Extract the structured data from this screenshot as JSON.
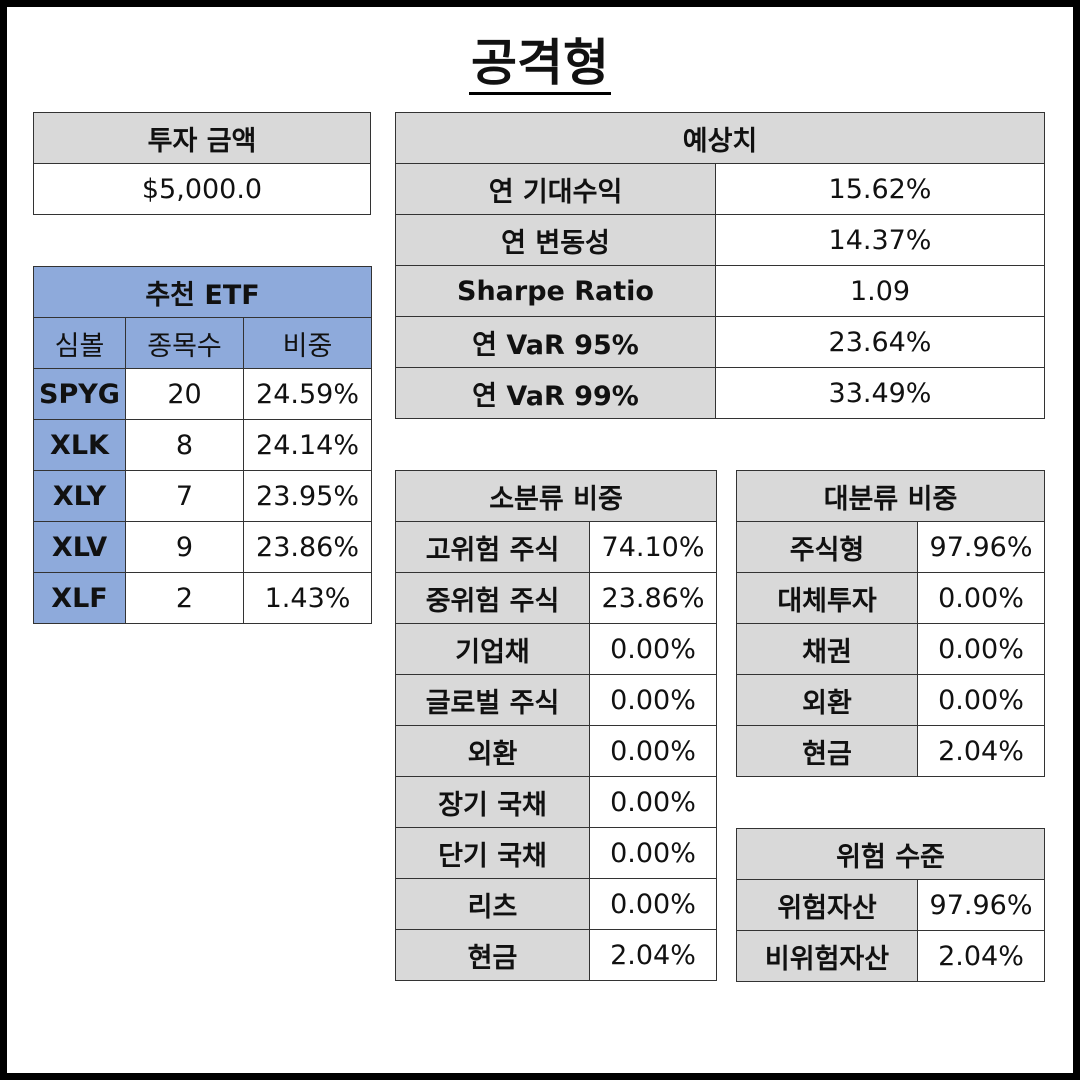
{
  "title": "공격형",
  "investment": {
    "header": "투자 금액",
    "amount": "$5,000.0"
  },
  "etf": {
    "header": "추천 ETF",
    "columns": [
      "심볼",
      "종목수",
      "비중"
    ],
    "rows": [
      {
        "symbol": "SPYG",
        "count": "20",
        "weight": "24.59%"
      },
      {
        "symbol": "XLK",
        "count": "8",
        "weight": "24.14%"
      },
      {
        "symbol": "XLY",
        "count": "7",
        "weight": "23.95%"
      },
      {
        "symbol": "XLV",
        "count": "9",
        "weight": "23.86%"
      },
      {
        "symbol": "XLF",
        "count": "2",
        "weight": "1.43%"
      }
    ]
  },
  "forecast": {
    "header": "예상치",
    "rows": [
      {
        "label": "연 기대수익",
        "value": "15.62%"
      },
      {
        "label": "연 변동성",
        "value": "14.37%"
      },
      {
        "label": "Sharpe Ratio",
        "value": "1.09"
      },
      {
        "label": "연 VaR 95%",
        "value": "23.64%"
      },
      {
        "label": "연 VaR 99%",
        "value": "33.49%"
      }
    ]
  },
  "sub_category": {
    "header": "소분류 비중",
    "rows": [
      {
        "label": "고위험 주식",
        "value": "74.10%"
      },
      {
        "label": "중위험 주식",
        "value": "23.86%"
      },
      {
        "label": "기업채",
        "value": "0.00%"
      },
      {
        "label": "글로벌 주식",
        "value": "0.00%"
      },
      {
        "label": "외환",
        "value": "0.00%"
      },
      {
        "label": "장기 국채",
        "value": "0.00%"
      },
      {
        "label": "단기 국채",
        "value": "0.00%"
      },
      {
        "label": "리츠",
        "value": "0.00%"
      },
      {
        "label": "현금",
        "value": "2.04%"
      }
    ]
  },
  "main_category": {
    "header": "대분류 비중",
    "rows": [
      {
        "label": "주식형",
        "value": "97.96%"
      },
      {
        "label": "대체투자",
        "value": "0.00%"
      },
      {
        "label": "채권",
        "value": "0.00%"
      },
      {
        "label": "외환",
        "value": "0.00%"
      },
      {
        "label": "현금",
        "value": "2.04%"
      }
    ]
  },
  "risk_level": {
    "header": "위험 수준",
    "rows": [
      {
        "label": "위험자산",
        "value": "97.96%"
      },
      {
        "label": "비위험자산",
        "value": "2.04%"
      }
    ]
  }
}
